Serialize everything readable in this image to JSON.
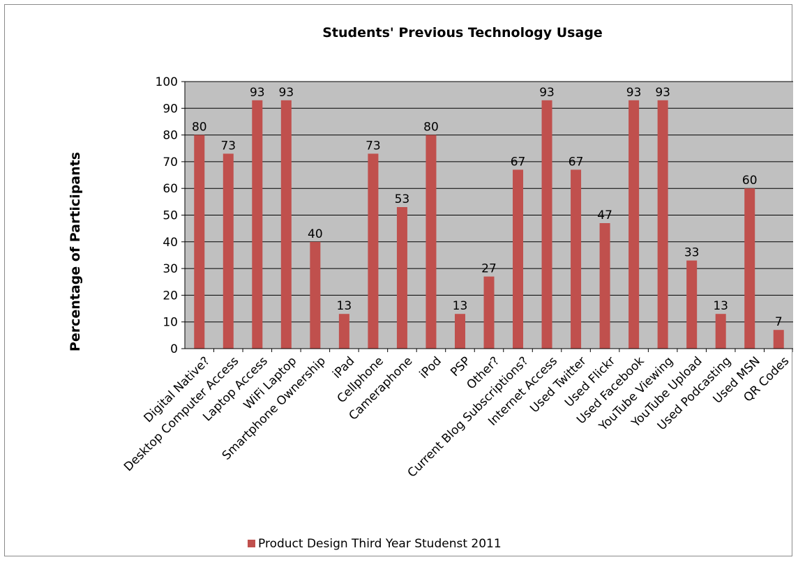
{
  "chart_data": {
    "type": "bar",
    "title": "Students' Previous Technology Usage",
    "ylabel": "Percentage of Participants",
    "xlabel": "",
    "ylim": [
      0,
      100
    ],
    "yticks": [
      0,
      10,
      20,
      30,
      40,
      50,
      60,
      70,
      80,
      90,
      100
    ],
    "grid": true,
    "legend_position": "bottom",
    "plot_background": "#c0c0c0",
    "bar_color": "#c0504d",
    "categories": [
      "Digital Native?",
      "Desktop Computer Access",
      "Laptop Access",
      "WiFi Laptop",
      "Smartphone Ownership",
      "iPad",
      "Cellphone",
      "Cameraphone",
      "iPod",
      "PSP",
      "Other?",
      "Current Blog Subscriptions?",
      "Internet Access",
      "Used Twitter",
      "Used Flickr",
      "Used Facebook",
      "YouTube Viewing",
      "YouTube Upload",
      "Used Podcasting",
      "Used MSN",
      "QR Codes"
    ],
    "series": [
      {
        "name": "Product Design Third Year Studenst 2011",
        "values": [
          80,
          73,
          93,
          93,
          40,
          13,
          73,
          53,
          80,
          13,
          27,
          67,
          93,
          67,
          47,
          93,
          93,
          33,
          13,
          60,
          7
        ],
        "data_labels": [
          "80",
          "73",
          "93",
          "93",
          "40",
          "13",
          "73",
          "53",
          "80",
          "13",
          "27",
          "67",
          "93",
          "67",
          "47",
          "93",
          "93",
          "33",
          "13",
          "60",
          "7"
        ]
      }
    ]
  }
}
